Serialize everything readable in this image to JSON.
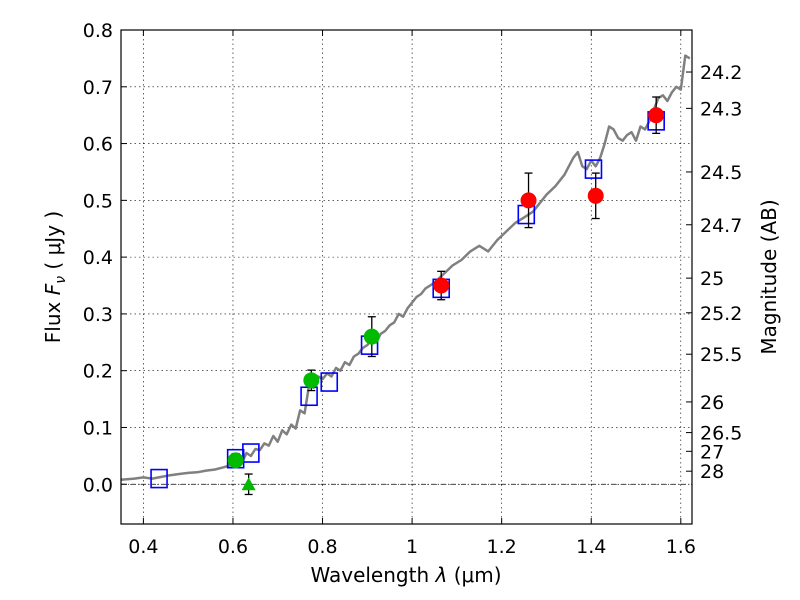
{
  "chart_data": {
    "type": "scatter",
    "xlabel_text": "Wavelength",
    "xlabel_lambda": "λ",
    "xlabel_unit": "(μm)",
    "ylabel_text": "Flux",
    "ylabel_symbol": "F",
    "ylabel_sub": "ν",
    "ylabel_unit": "( μJy )",
    "y2label": "Magnitude (AB)",
    "xlim": [
      0.35,
      1.625
    ],
    "ylim": [
      -0.07,
      0.8
    ],
    "grid": true,
    "x_ticks": [
      {
        "value": 0.4,
        "label": "0.4"
      },
      {
        "value": 0.6,
        "label": "0.6"
      },
      {
        "value": 0.8,
        "label": "0.8"
      },
      {
        "value": 1.0,
        "label": "1"
      },
      {
        "value": 1.2,
        "label": "1.2"
      },
      {
        "value": 1.4,
        "label": "1.4"
      },
      {
        "value": 1.6,
        "label": "1.6"
      }
    ],
    "y_ticks": [
      {
        "value": 0.0,
        "label": "0.0"
      },
      {
        "value": 0.1,
        "label": "0.1"
      },
      {
        "value": 0.2,
        "label": "0.2"
      },
      {
        "value": 0.3,
        "label": "0.3"
      },
      {
        "value": 0.4,
        "label": "0.4"
      },
      {
        "value": 0.5,
        "label": "0.5"
      },
      {
        "value": 0.6,
        "label": "0.6"
      },
      {
        "value": 0.7,
        "label": "0.7"
      },
      {
        "value": 0.8,
        "label": "0.8"
      }
    ],
    "mag_ticks": [
      {
        "flux": 0.726,
        "label": "24.2"
      },
      {
        "flux": 0.662,
        "label": "24.3"
      },
      {
        "flux": 0.55,
        "label": "24.5"
      },
      {
        "flux": 0.457,
        "label": "24.7"
      },
      {
        "flux": 0.363,
        "label": "25"
      },
      {
        "flux": 0.302,
        "label": "25.2"
      },
      {
        "flux": 0.229,
        "label": "25.5"
      },
      {
        "flux": 0.145,
        "label": "26"
      },
      {
        "flux": 0.091,
        "label": "26.5"
      },
      {
        "flux": 0.058,
        "label": "27"
      },
      {
        "flux": 0.023,
        "label": "28"
      }
    ],
    "model_spectrum": {
      "name": "model",
      "color": "#808080",
      "x": [
        0.35,
        0.38,
        0.4,
        0.42,
        0.44,
        0.46,
        0.48,
        0.5,
        0.52,
        0.54,
        0.56,
        0.58,
        0.6,
        0.61,
        0.62,
        0.63,
        0.64,
        0.65,
        0.66,
        0.67,
        0.68,
        0.69,
        0.7,
        0.71,
        0.72,
        0.73,
        0.74,
        0.75,
        0.76,
        0.77,
        0.78,
        0.79,
        0.8,
        0.81,
        0.82,
        0.83,
        0.84,
        0.85,
        0.86,
        0.87,
        0.88,
        0.89,
        0.9,
        0.91,
        0.92,
        0.93,
        0.94,
        0.95,
        0.96,
        0.97,
        0.98,
        0.99,
        1.0,
        1.01,
        1.02,
        1.03,
        1.05,
        1.07,
        1.09,
        1.11,
        1.13,
        1.15,
        1.17,
        1.19,
        1.21,
        1.23,
        1.25,
        1.27,
        1.29,
        1.3,
        1.32,
        1.34,
        1.36,
        1.37,
        1.38,
        1.39,
        1.4,
        1.41,
        1.42,
        1.43,
        1.44,
        1.45,
        1.46,
        1.47,
        1.48,
        1.49,
        1.5,
        1.51,
        1.52,
        1.53,
        1.54,
        1.55,
        1.56,
        1.57,
        1.58,
        1.59,
        1.6,
        1.61,
        1.62
      ],
      "y": [
        0.008,
        0.01,
        0.012,
        0.01,
        0.013,
        0.016,
        0.018,
        0.02,
        0.021,
        0.024,
        0.026,
        0.03,
        0.035,
        0.042,
        0.038,
        0.055,
        0.05,
        0.062,
        0.06,
        0.072,
        0.068,
        0.085,
        0.075,
        0.095,
        0.088,
        0.105,
        0.098,
        0.13,
        0.125,
        0.175,
        0.17,
        0.19,
        0.185,
        0.195,
        0.19,
        0.205,
        0.2,
        0.215,
        0.21,
        0.225,
        0.23,
        0.24,
        0.245,
        0.255,
        0.25,
        0.265,
        0.27,
        0.28,
        0.285,
        0.3,
        0.295,
        0.31,
        0.32,
        0.33,
        0.335,
        0.345,
        0.355,
        0.37,
        0.385,
        0.395,
        0.41,
        0.42,
        0.41,
        0.43,
        0.445,
        0.46,
        0.47,
        0.48,
        0.5,
        0.51,
        0.525,
        0.545,
        0.575,
        0.585,
        0.56,
        0.555,
        0.57,
        0.56,
        0.575,
        0.6,
        0.63,
        0.625,
        0.61,
        0.605,
        0.615,
        0.62,
        0.605,
        0.63,
        0.625,
        0.64,
        0.66,
        0.68,
        0.685,
        0.675,
        0.69,
        0.7,
        0.695,
        0.755,
        0.75
      ]
    },
    "series": [
      {
        "name": "model-bandpass",
        "marker": "square-open",
        "color": "#0000ff",
        "x": [
          0.435,
          0.606,
          0.64,
          0.77,
          0.815,
          0.905,
          1.065,
          1.255,
          1.405,
          1.545
        ],
        "y": [
          0.01,
          0.045,
          0.055,
          0.155,
          0.18,
          0.245,
          0.345,
          0.475,
          0.555,
          0.64
        ]
      },
      {
        "name": "optical-detections",
        "marker": "circle",
        "color": "#00bb00",
        "x": [
          0.606,
          0.775,
          0.91
        ],
        "y": [
          0.042,
          0.183,
          0.26
        ],
        "err": [
          0.012,
          0.018,
          0.035
        ]
      },
      {
        "name": "optical-limit",
        "marker": "triangle",
        "color": "#00bb00",
        "x": [
          0.635
        ],
        "y": [
          0.0
        ],
        "err": [
          0.018
        ]
      },
      {
        "name": "nir-detections",
        "marker": "circle",
        "color": "#ff0000",
        "x": [
          1.065,
          1.26,
          1.41,
          1.545
        ],
        "y": [
          0.35,
          0.5,
          0.508,
          0.65
        ],
        "err": [
          0.025,
          0.048,
          0.04,
          0.032
        ]
      }
    ],
    "baseline": 0.0
  }
}
